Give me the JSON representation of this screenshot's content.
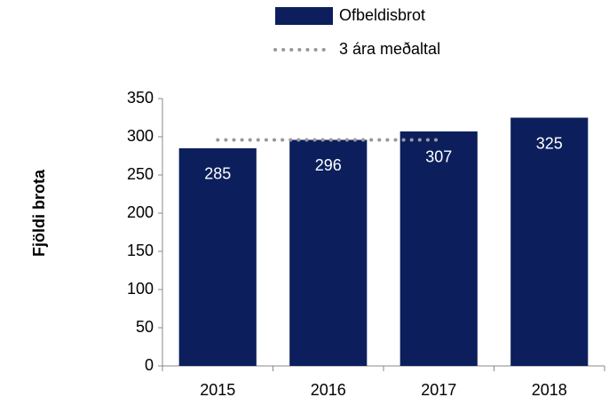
{
  "chart_data": {
    "type": "bar",
    "ylabel": "Fjöldi brota",
    "categories": [
      "2015",
      "2016",
      "2017",
      "2018"
    ],
    "series": [
      {
        "name": "Ofbeldisbrot",
        "type": "bar",
        "color": "#0c1f5c",
        "values": [
          285,
          296,
          307,
          325
        ]
      },
      {
        "name": "3 ára meðaltal",
        "type": "line",
        "color": "#999999",
        "values": [
          296,
          296,
          296,
          null
        ]
      }
    ],
    "ylim": [
      0,
      350
    ],
    "yticks": [
      0,
      50,
      100,
      150,
      200,
      250,
      300,
      350
    ],
    "grid": false,
    "legend": "top"
  }
}
